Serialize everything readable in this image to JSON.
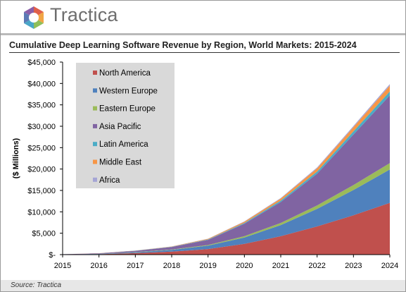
{
  "brand": {
    "name": "Tractica"
  },
  "chart_data": {
    "type": "area",
    "stacked": true,
    "title": "Cumulative Deep Learning Software Revenue by Region, World Markets: 2015-2024",
    "ylabel": "($ Millions)",
    "xlabel": "",
    "x": [
      "2015",
      "2016",
      "2017",
      "2018",
      "2019",
      "2020",
      "2021",
      "2022",
      "2023",
      "2024"
    ],
    "ylim": [
      0,
      45000
    ],
    "yticks": [
      0,
      5000,
      10000,
      15000,
      20000,
      25000,
      30000,
      35000,
      40000,
      45000
    ],
    "ytick_labels": [
      "$-",
      "$5,000",
      "$10,000",
      "$15,000",
      "$20,000",
      "$25,000",
      "$30,000",
      "$35,000",
      "$40,000",
      "$45,000"
    ],
    "legend_position": "top-left",
    "grid": false,
    "series": [
      {
        "name": "North America",
        "color": "#c0504d",
        "values": [
          30,
          100,
          350,
          700,
          1300,
          2500,
          4300,
          6600,
          9200,
          12100
        ]
      },
      {
        "name": "Western Europe",
        "color": "#4f81bd",
        "values": [
          20,
          70,
          200,
          400,
          800,
          1500,
          2600,
          4100,
          5900,
          7800
        ]
      },
      {
        "name": "Eastern Europe",
        "color": "#9bbb59",
        "values": [
          5,
          15,
          40,
          80,
          150,
          300,
          500,
          800,
          1150,
          1500
        ]
      },
      {
        "name": "Asia Pacific",
        "color": "#8064a2",
        "values": [
          30,
          120,
          300,
          600,
          1200,
          2900,
          4900,
          7400,
          11800,
          15800
        ]
      },
      {
        "name": "Latin America",
        "color": "#4bacc6",
        "values": [
          2,
          8,
          25,
          50,
          100,
          200,
          330,
          520,
          750,
          950
        ]
      },
      {
        "name": "Middle East",
        "color": "#f79646",
        "values": [
          3,
          10,
          30,
          70,
          140,
          280,
          480,
          750,
          1000,
          1350
        ]
      },
      {
        "name": "Africa",
        "color": "#a5a5d5",
        "values": [
          1,
          5,
          10,
          20,
          40,
          80,
          130,
          200,
          270,
          350
        ]
      }
    ]
  },
  "source": "Source: Tractica"
}
